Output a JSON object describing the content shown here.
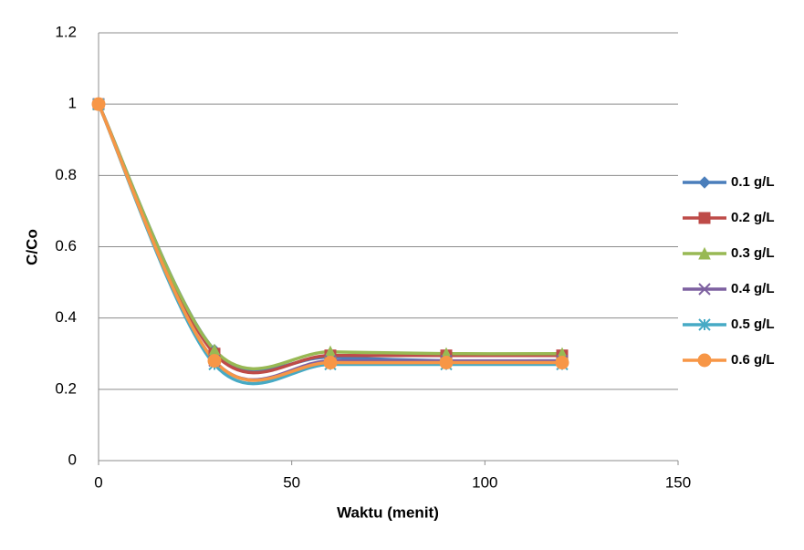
{
  "chart_data": {
    "type": "scatter-smooth",
    "x_label": "Waktu (menit)",
    "y_label": "C/Co",
    "x": [
      0,
      30,
      60,
      90,
      120
    ],
    "series": [
      {
        "name": "0.1 g/L",
        "color": "#4a7ebb",
        "marker": "diamond",
        "values": [
          1,
          0.31,
          0.29,
          0.28,
          0.28
        ]
      },
      {
        "name": "0.2 g/L",
        "color": "#be4b48",
        "marker": "square",
        "values": [
          1,
          0.3,
          0.295,
          0.295,
          0.295
        ]
      },
      {
        "name": "0.3 g/L",
        "color": "#98b954",
        "marker": "triangle",
        "values": [
          1,
          0.31,
          0.305,
          0.3,
          0.3
        ]
      },
      {
        "name": "0.4 g/L",
        "color": "#7d60a0",
        "marker": "x",
        "values": [
          1,
          0.28,
          0.28,
          0.28,
          0.28
        ]
      },
      {
        "name": "0.5 g/L",
        "color": "#46aac5",
        "marker": "star",
        "values": [
          1,
          0.27,
          0.27,
          0.27,
          0.27
        ]
      },
      {
        "name": "0.6 g/L",
        "color": "#f79646",
        "marker": "circle",
        "values": [
          1,
          0.28,
          0.275,
          0.275,
          0.275
        ]
      }
    ],
    "xlim": [
      0,
      150
    ],
    "xticks": [
      0,
      50,
      100,
      150
    ],
    "ylim": [
      0,
      1.2
    ],
    "yticks": [
      0,
      0.2,
      0.4,
      0.6,
      0.8,
      1,
      1.2
    ],
    "grid": true,
    "legend": "right"
  }
}
